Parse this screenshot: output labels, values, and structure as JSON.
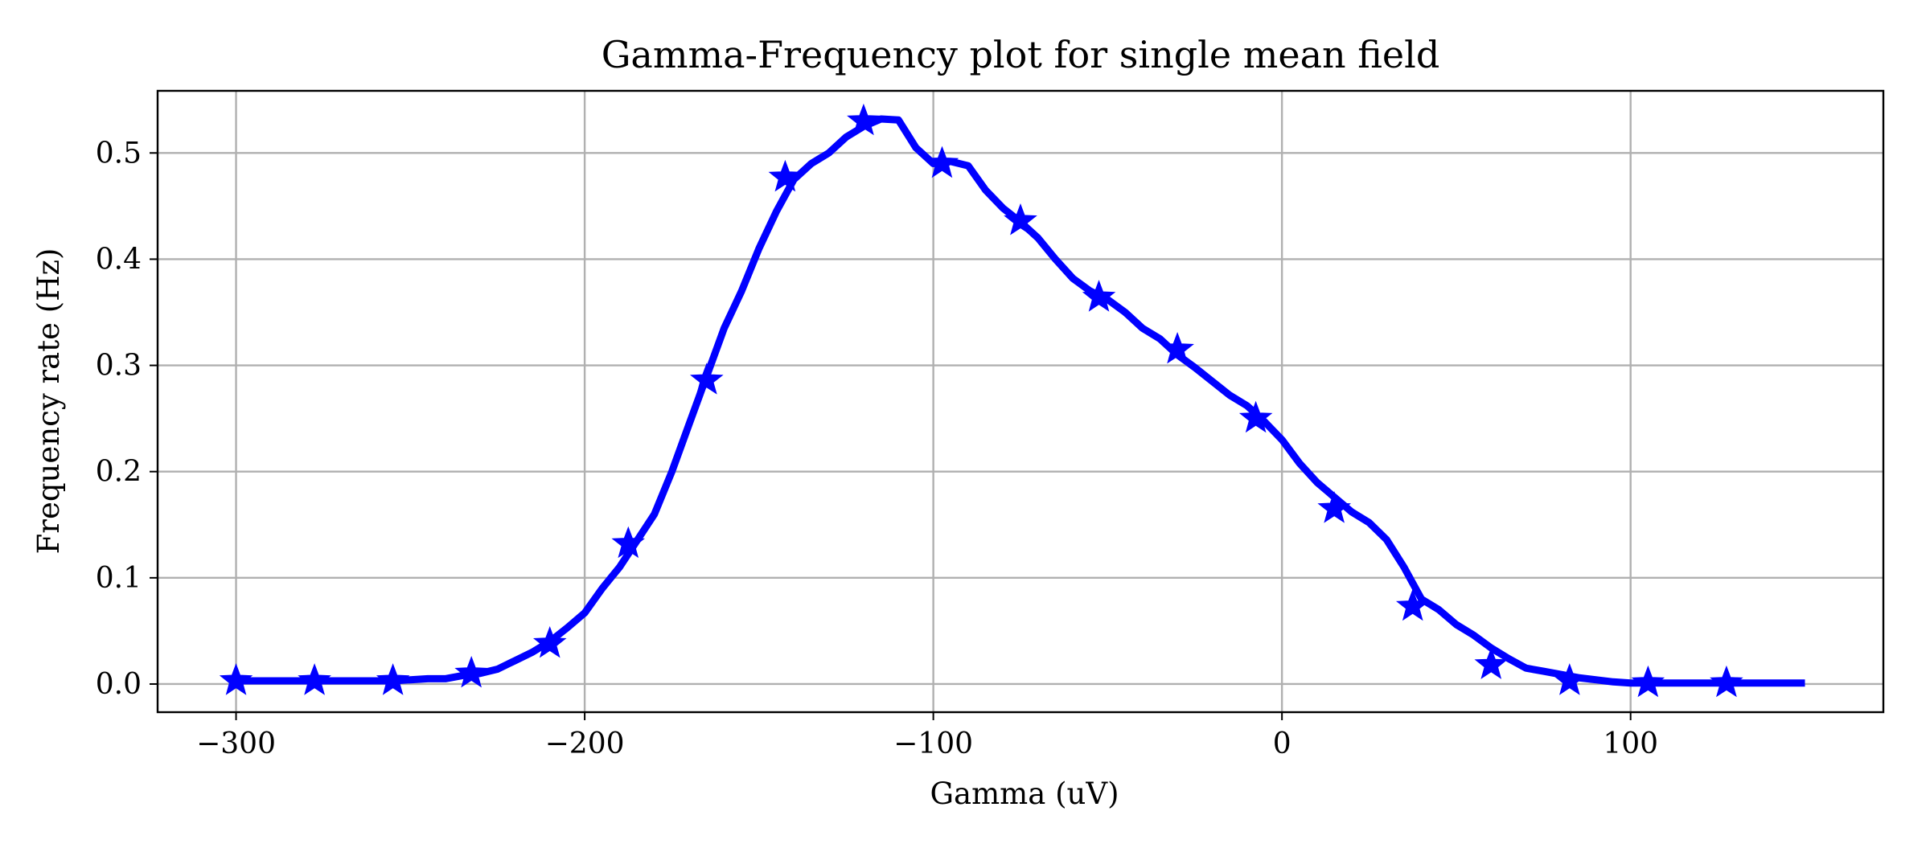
{
  "chart_data": {
    "type": "line",
    "title": "Gamma-Frequency plot for single mean field",
    "xlabel": "Gamma (uV)",
    "ylabel": "Frequency rate (Hz)",
    "xlim": [
      -322.5,
      172.5
    ],
    "ylim": [
      -0.0265,
      0.5585
    ],
    "xticks": [
      -300,
      -200,
      -100,
      0,
      100
    ],
    "xtick_labels": [
      "−300",
      "−200",
      "−100",
      "0",
      "100"
    ],
    "yticks": [
      0.0,
      0.1,
      0.2,
      0.3,
      0.4,
      0.5
    ],
    "ytick_labels": [
      "0.0",
      "0.1",
      "0.2",
      "0.3",
      "0.4",
      "0.5"
    ],
    "grid": true,
    "color": "#0000ff",
    "marker": "star",
    "series": [
      {
        "x": [
          -300,
          -295,
          -290,
          -285,
          -280,
          -275,
          -270,
          -265,
          -260,
          -255,
          -250,
          -245,
          -240,
          -235,
          -230,
          -225,
          -220,
          -215,
          -210,
          -205,
          -200,
          -195,
          -190,
          -185,
          -180,
          -175,
          -170,
          -165,
          -160,
          -155,
          -150,
          -145,
          -140,
          -135,
          -130,
          -125,
          -120,
          -115,
          -110,
          -105,
          -100,
          -95,
          -90,
          -85,
          -80,
          -75,
          -70,
          -65,
          -60,
          -55,
          -50,
          -45,
          -40,
          -35,
          -30,
          -25,
          -20,
          -15,
          -10,
          -5,
          0,
          5,
          10,
          15,
          20,
          25,
          30,
          35,
          40,
          45,
          50,
          55,
          60,
          65,
          70,
          75,
          80,
          85,
          90,
          95,
          100,
          105,
          110,
          115,
          120,
          125,
          130,
          135,
          140,
          145,
          150
        ],
        "y": [
          0.003,
          0.003,
          0.003,
          0.003,
          0.003,
          0.003,
          0.003,
          0.003,
          0.003,
          0.003,
          0.004,
          0.005,
          0.005,
          0.008,
          0.01,
          0.014,
          0.022,
          0.03,
          0.04,
          0.053,
          0.067,
          0.09,
          0.11,
          0.135,
          0.16,
          0.2,
          0.245,
          0.29,
          0.335,
          0.37,
          0.41,
          0.445,
          0.475,
          0.49,
          0.5,
          0.515,
          0.525,
          0.532,
          0.531,
          0.505,
          0.49,
          0.492,
          0.488,
          0.465,
          0.448,
          0.435,
          0.42,
          0.4,
          0.382,
          0.37,
          0.362,
          0.35,
          0.335,
          0.325,
          0.31,
          0.298,
          0.285,
          0.272,
          0.262,
          0.247,
          0.23,
          0.208,
          0.19,
          0.176,
          0.162,
          0.152,
          0.136,
          0.11,
          0.08,
          0.07,
          0.056,
          0.046,
          0.034,
          0.024,
          0.015,
          0.012,
          0.009,
          0.006,
          0.004,
          0.002,
          0.001,
          0.001,
          0.001,
          0.001,
          0.001,
          0.001,
          0.001,
          0.001,
          0.001,
          0.001,
          0.001
        ]
      }
    ],
    "markers": {
      "x": [
        -300,
        -277.5,
        -255,
        -232.5,
        -210,
        -187.5,
        -165,
        -142.5,
        -120,
        -97.5,
        -75,
        -52.5,
        -30,
        -7.5,
        15,
        37.5,
        60,
        82.5,
        105,
        127.5
      ],
      "y": [
        0.003,
        0.003,
        0.003,
        0.01,
        0.038,
        0.132,
        0.286,
        0.477,
        0.53,
        0.49,
        0.436,
        0.364,
        0.315,
        0.25,
        0.165,
        0.073,
        0.018,
        0.003,
        0.001,
        0.001
      ]
    }
  }
}
